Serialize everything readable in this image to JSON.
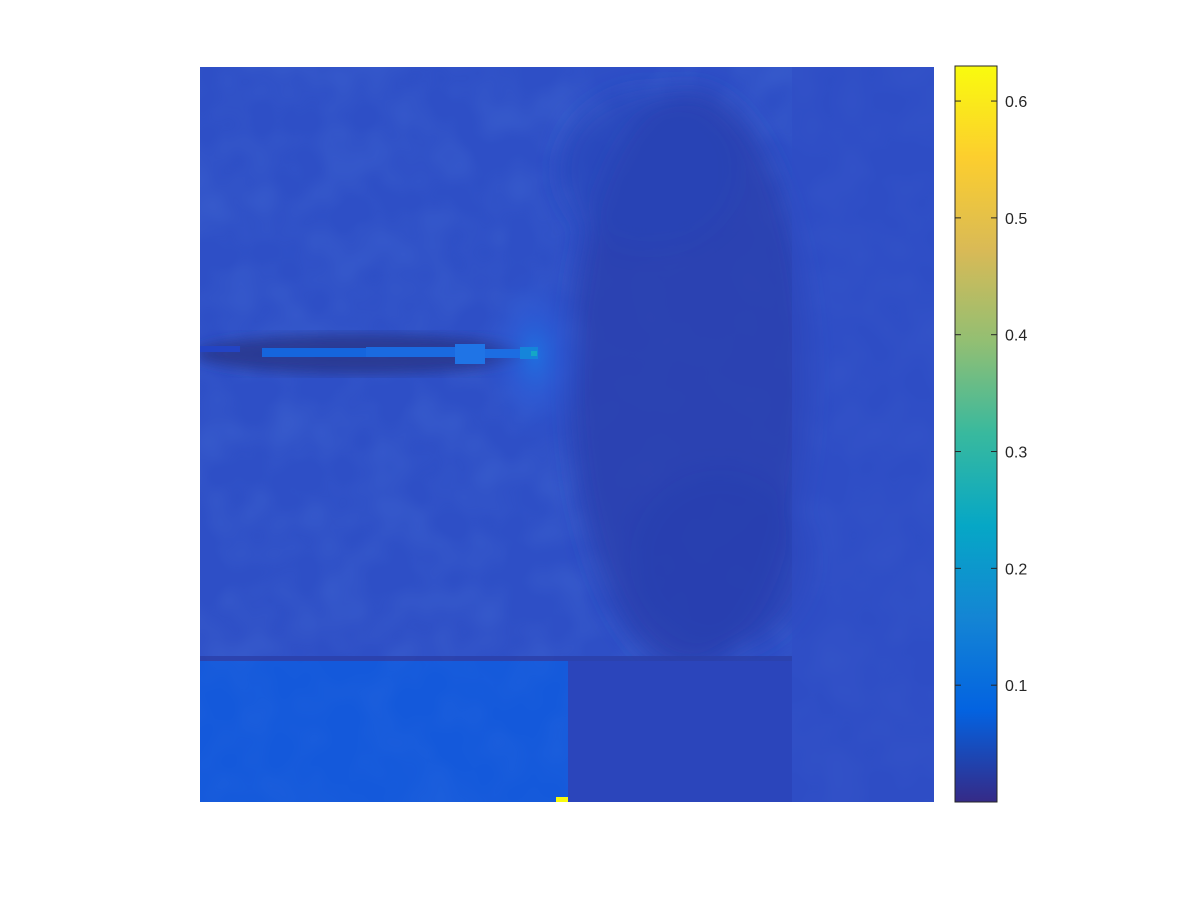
{
  "chart_data": {
    "type": "heatmap",
    "title": "",
    "xlabel": "",
    "ylabel": "",
    "colormap": "parula",
    "colorbar": {
      "limits": [
        0.0,
        0.63
      ],
      "ticks": [
        0.1,
        0.2,
        0.3,
        0.4,
        0.5,
        0.6
      ],
      "tick_labels": [
        "0.1",
        "0.2",
        "0.3",
        "0.4",
        "0.5",
        "0.6"
      ],
      "position": "right"
    },
    "axes_visible": false,
    "grid": false,
    "regions": [
      {
        "name": "main field",
        "approx_value": 0.04
      },
      {
        "name": "right side region",
        "approx_value": 0.02
      },
      {
        "name": "right strip",
        "approx_value": 0.035
      },
      {
        "name": "crack line",
        "approx_value": 0.1
      },
      {
        "name": "crack tip",
        "approx_value": 0.25
      },
      {
        "name": "lower left block",
        "approx_value": 0.08
      },
      {
        "name": "lower right block",
        "approx_value": 0.035
      },
      {
        "name": "bottom edge spot",
        "approx_value": 0.63
      }
    ]
  },
  "colors": {
    "background": "#ffffff",
    "axis": "#262626",
    "parula_low": "#352a87",
    "parula_high": "#f9fb0e"
  }
}
